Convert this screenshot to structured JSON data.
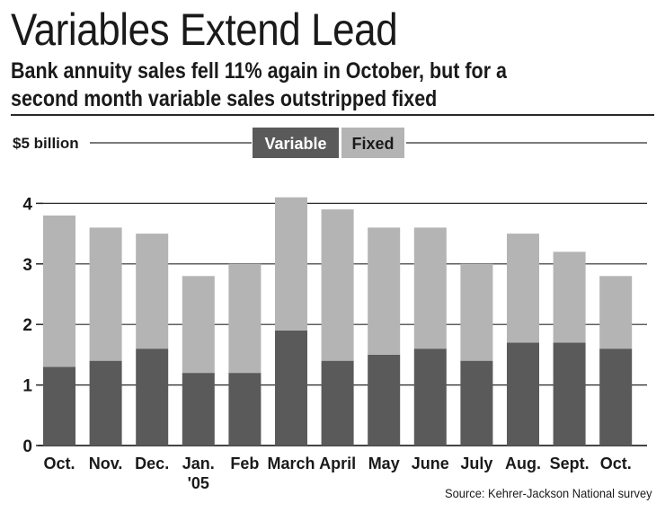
{
  "title": "Variables Extend Lead",
  "subtitle_lines": [
    "Bank annuity sales fell 11% again in October, but for a",
    "second month variable sales outstripped fixed"
  ],
  "source": "Source: Kehrer-Jackson National survey",
  "colors": {
    "variable": "#5a5a5a",
    "fixed": "#b4b4b4",
    "grid": "#2a2a2a"
  },
  "chart_data": {
    "type": "bar",
    "stacked": true,
    "unit_label": "$5 billion",
    "categories": [
      [
        "Oct."
      ],
      [
        "Nov."
      ],
      [
        "Dec."
      ],
      [
        "Jan.",
        "'05"
      ],
      [
        "Feb"
      ],
      [
        "March"
      ],
      [
        "April"
      ],
      [
        "May"
      ],
      [
        "June"
      ],
      [
        "July"
      ],
      [
        "Aug."
      ],
      [
        "Sept."
      ],
      [
        "Oct."
      ]
    ],
    "series": [
      {
        "name": "Variable",
        "color": "#5a5a5a",
        "values": [
          1.3,
          1.4,
          1.6,
          1.2,
          1.2,
          1.9,
          1.4,
          1.5,
          1.6,
          1.4,
          1.7,
          1.7,
          1.6
        ]
      },
      {
        "name": "Fixed",
        "color": "#b4b4b4",
        "values": [
          2.5,
          2.2,
          1.9,
          1.6,
          1.8,
          2.2,
          2.5,
          2.1,
          2.0,
          1.6,
          1.8,
          1.5,
          1.2
        ]
      }
    ],
    "y_ticks": [
      "0",
      "1",
      "2",
      "3",
      "4"
    ],
    "ylim": [
      0,
      5
    ],
    "grid": true,
    "legend_placement": "top-center"
  }
}
